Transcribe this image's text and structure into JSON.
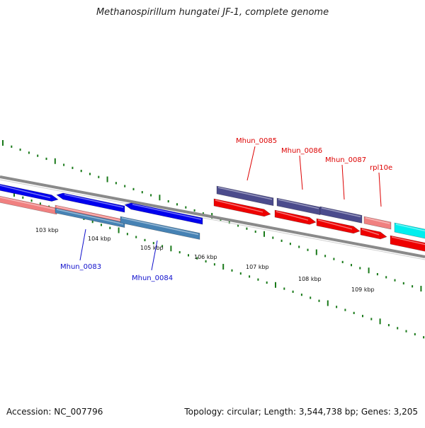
{
  "title": "Methanospirillum hungatei JF-1, complete genome",
  "footer": {
    "accession": "Accession: NC_007796",
    "topology": "Topology: circular; Length: 3,544,738 bp; Genes: 3,205"
  },
  "colors": {
    "backbone": "#8a8a8a",
    "tick": "#1a7a1a",
    "forward_cds": "#0000ee",
    "forward_gene": "#f08080",
    "reverse_cds": "#4682b4",
    "operon": "#4b4b8c",
    "reverse_gene_red": "#ee0000",
    "cyan": "#00eeee",
    "label_blue": "#1010cc",
    "label_red": "#dd0000"
  },
  "kbp_ticks": [
    "103 kbp",
    "104 kbp",
    "105 kbp",
    "106 kbp",
    "107 kbp",
    "108 kbp",
    "109 kbp"
  ],
  "gene_labels": [
    {
      "name": "Mhun_0083",
      "color": "#1010cc"
    },
    {
      "name": "Mhun_0084",
      "color": "#1010cc"
    },
    {
      "name": "Mhun_0085",
      "color": "#dd0000"
    },
    {
      "name": "Mhun_0086",
      "color": "#dd0000"
    },
    {
      "name": "Mhun_0087",
      "color": "#dd0000"
    },
    {
      "name": "rpl10e",
      "color": "#dd0000"
    }
  ]
}
